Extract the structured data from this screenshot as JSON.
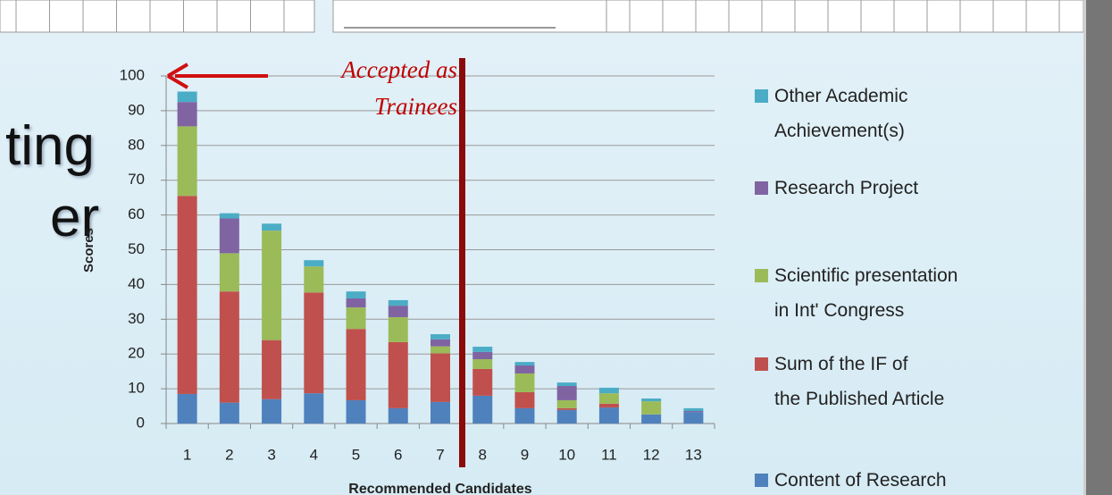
{
  "slide": {
    "fragments": [
      "ting",
      "er"
    ]
  },
  "chart_data": {
    "type": "stacked_bar",
    "x_label": "Recommended Candidates",
    "y_label": "Scores",
    "annotation": "Accepted as\nTrainees",
    "categories": [
      "1",
      "2",
      "3",
      "4",
      "5",
      "6",
      "7",
      "8",
      "9",
      "10",
      "11",
      "12",
      "13"
    ],
    "series": [
      {
        "name": "Content of Research",
        "color": "#4f81bd",
        "values": [
          8.5,
          6,
          7,
          8.7,
          6.7,
          4.4,
          6.2,
          8,
          4.4,
          3.9,
          4.6,
          2.6,
          3.3
        ]
      },
      {
        "name": "Sum of the IF of\nthe Published Article",
        "color": "#c0504d",
        "values": [
          57,
          32,
          17,
          29,
          20.5,
          19,
          14,
          7.7,
          4.6,
          0.5,
          1.1,
          0,
          0
        ]
      },
      {
        "name": "Scientific presentation\nin Int' Congress",
        "color": "#9bbb59",
        "values": [
          20,
          11,
          31.5,
          7.5,
          6.2,
          7.2,
          2,
          2.8,
          5.4,
          2.3,
          3,
          3.8,
          0
        ]
      },
      {
        "name": "Research Project",
        "color": "#8064a2",
        "values": [
          7,
          10,
          0,
          0,
          2.6,
          3.3,
          2,
          2.1,
          2.3,
          4.1,
          0,
          0,
          0.3
        ]
      },
      {
        "name": "Other Academic\nAchievement(s)",
        "color": "#4bacc6",
        "values": [
          3,
          1.5,
          2,
          1.8,
          2,
          1.6,
          1.5,
          1.5,
          1,
          1,
          1.6,
          0.8,
          0.8
        ]
      }
    ],
    "ylim": [
      0,
      100
    ],
    "yticks": [
      0,
      10,
      20,
      30,
      40,
      50,
      60,
      70,
      80,
      90,
      100
    ],
    "grid": true,
    "legend": "right"
  }
}
